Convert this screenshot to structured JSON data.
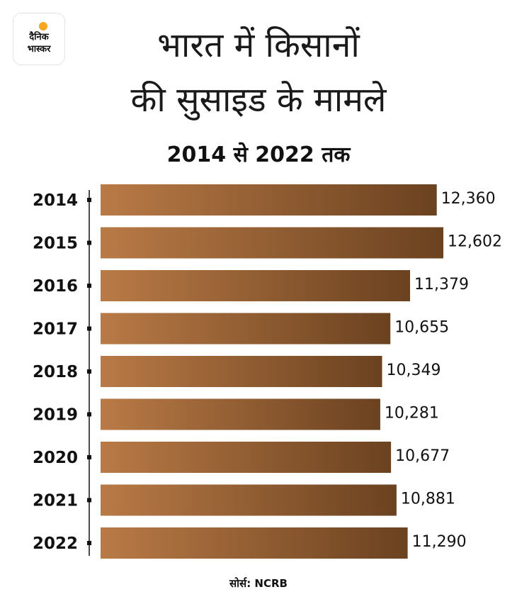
{
  "brand": {
    "line1": "दैनिक",
    "line2": "भास्कर",
    "sun_color": "#f5a623"
  },
  "title": {
    "line1": "भारत में किसानों",
    "line2": "की सुसाइड के मामले"
  },
  "subtitle": "2014 से 2022 तक",
  "source": "सोर्स: NCRB",
  "colors": {
    "bar_light": "#b97a46",
    "bar_dark": "#6b4220",
    "axis": "#111111"
  },
  "chart_data": {
    "type": "bar",
    "orientation": "horizontal",
    "title": "भारत में किसानों की सुसाइड के मामले",
    "subtitle": "2014 से 2022 तक",
    "xlabel": "",
    "ylabel": "",
    "xlim": [
      0,
      12602
    ],
    "categories": [
      "2014",
      "2015",
      "2016",
      "2017",
      "2018",
      "2019",
      "2020",
      "2021",
      "2022"
    ],
    "values": [
      12360,
      12602,
      11379,
      10655,
      10349,
      10281,
      10677,
      10881,
      11290
    ],
    "value_labels": [
      "12,360",
      "12,602",
      "11,379",
      "10,655",
      "10,349",
      "10,281",
      "10,677",
      "10,881",
      "11,290"
    ],
    "legend": "none",
    "grid": false
  }
}
